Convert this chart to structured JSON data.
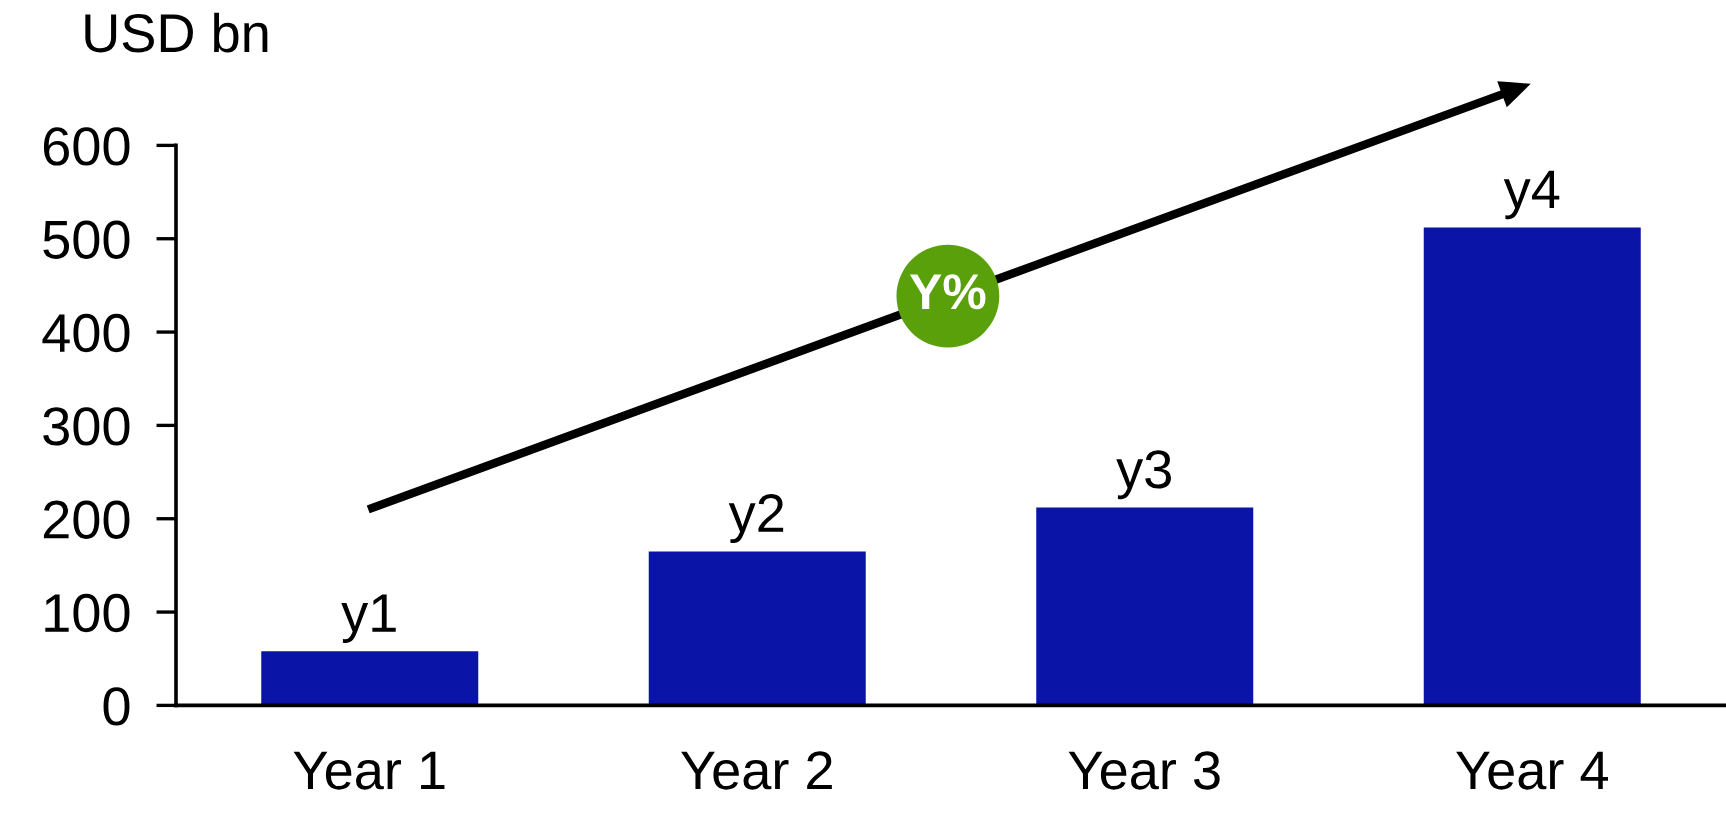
{
  "chart_data": {
    "type": "bar",
    "ylabel": "USD bn",
    "categories": [
      "Year 1",
      "Year 2",
      "Year 3",
      "Year 4"
    ],
    "values": [
      58,
      165,
      212,
      512
    ],
    "value_labels": [
      "y1",
      "y2",
      "y3",
      "y4"
    ],
    "color": "#0a14a6",
    "ylim": [
      0,
      600
    ],
    "yticks": [
      0,
      100,
      200,
      300,
      400,
      500,
      600
    ],
    "annotations": [
      "Y%"
    ]
  }
}
